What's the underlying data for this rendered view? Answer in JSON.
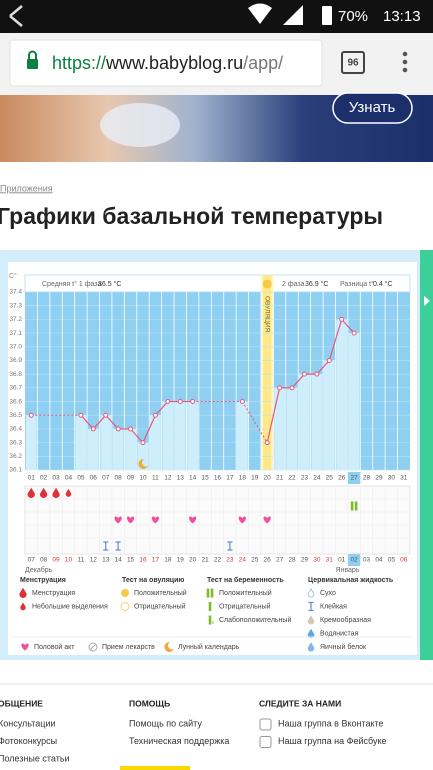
{
  "status_bar": {
    "battery": "70%",
    "time": "13:13"
  },
  "browser": {
    "url_scheme": "https://",
    "url_host": "www.babyblog.ru",
    "url_path": "/app/",
    "tabs": "96"
  },
  "banner": {
    "button": "Узнать"
  },
  "breadcrumb": "Приложения",
  "heading": "Графики базальной температуры",
  "chart_data": {
    "type": "line",
    "y_unit": "C°",
    "phase1_label": "Средняя t° 1 фаза",
    "phase1_value": "36.5 °C",
    "ovulation_label": "ОВУЛЯЦИЯ",
    "phase2_label": "2 фаза",
    "phase2_value": "36.9 °C",
    "diff_label": "Разница t°",
    "diff_value": "0.4 °C",
    "categories": [
      "01",
      "02",
      "03",
      "04",
      "05",
      "06",
      "07",
      "08",
      "09",
      "10",
      "11",
      "12",
      "13",
      "14",
      "15",
      "16",
      "17",
      "18",
      "19",
      "20",
      "21",
      "22",
      "23",
      "24",
      "25",
      "26",
      "27",
      "28",
      "29",
      "30",
      "31"
    ],
    "values": [
      36.5,
      null,
      null,
      null,
      36.5,
      36.4,
      36.5,
      36.4,
      36.4,
      36.3,
      36.5,
      36.6,
      36.6,
      36.6,
      null,
      null,
      null,
      36.6,
      null,
      36.3,
      36.7,
      36.7,
      36.8,
      36.8,
      36.9,
      37.2,
      37.1,
      null,
      null,
      null,
      null
    ],
    "color": "#e8577c",
    "ylim": [
      36.1,
      37.4
    ],
    "yticks": [
      36.1,
      36.2,
      36.3,
      36.4,
      36.5,
      36.6,
      36.7,
      36.8,
      36.9,
      {
        "value": 37,
        "label": "37.0"
      },
      37.1,
      37.2,
      37.3,
      37.4
    ],
    "highlight": "27",
    "dates": [
      "07",
      "08",
      "09",
      "10",
      "11",
      "12",
      "13",
      "14",
      "15",
      "16",
      "17",
      "18",
      "19",
      "20",
      "21",
      "22",
      "23",
      "24",
      "25",
      "26",
      "27",
      "28",
      "29",
      "30",
      "31",
      "01",
      "02",
      "03",
      "04",
      "05",
      "06"
    ],
    "red_dates": [
      "09",
      "10",
      "16",
      "17",
      "23",
      "24",
      "30",
      "31",
      "06"
    ],
    "months": [
      {
        "label": "Декабрь",
        "from": "07"
      },
      {
        "label": "Январь",
        "from": "01"
      }
    ],
    "legend": [
      {
        "title": "Менструация",
        "items": [
          {
            "label": "Менструация",
            "days": [
              "01",
              "02",
              "03"
            ]
          },
          {
            "label": "Небольшие выделения",
            "days": [
              "04"
            ]
          }
        ]
      },
      {
        "title": "Тест на овуляцию",
        "items": [
          {
            "label": "Положительный",
            "days": [
              "20"
            ]
          },
          {
            "label": "Отрицательный"
          }
        ]
      },
      {
        "title": "Тест на беременность",
        "items": [
          {
            "label": "Положительный",
            "days": [
              "27"
            ]
          },
          {
            "label": "Отрицательный"
          },
          {
            "label": "Слабоположительный"
          }
        ]
      },
      {
        "title": "Цервикальная жидкость",
        "items": [
          {
            "label": "Сухо"
          },
          {
            "label": "Клейкая",
            "days": [
              "07",
              "08",
              "17"
            ]
          },
          {
            "label": "Кремообразная"
          },
          {
            "label": "Водянистая"
          },
          {
            "label": "Яичный белок"
          }
        ]
      },
      {
        "items": [
          {
            "label": "Половой акт",
            "days": [
              "08",
              "09",
              "11",
              "14",
              "18",
              "20"
            ]
          },
          {
            "label": "Прием лекарств"
          },
          {
            "label": "Лунный календарь",
            "days": [
              "10"
            ]
          }
        ]
      }
    ]
  },
  "footer": {
    "columns": [
      {
        "title": "ОБЩЕНИЕ",
        "links": [
          "Консультации",
          "Фотоконкурсы",
          "Полезные статьи"
        ]
      },
      {
        "title": "ПОМОЩЬ",
        "links": [
          "Помощь по сайту",
          "Техническая поддержка"
        ]
      },
      {
        "title": "СЛЕДИТЕ ЗА НАМИ",
        "links": [
          "Наша группа в Вконтакте",
          "Наша группа на Фейсбуке"
        ]
      }
    ]
  }
}
